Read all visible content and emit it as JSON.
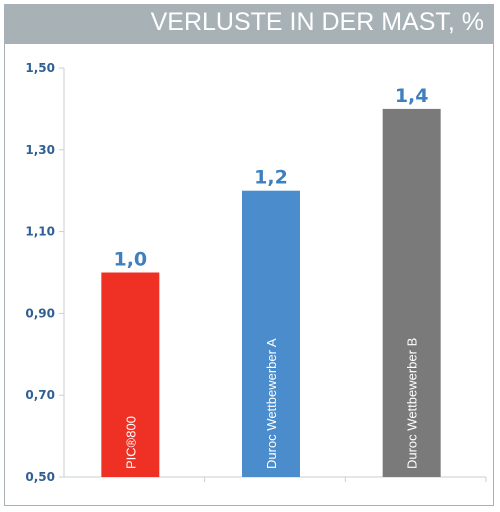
{
  "header": {
    "title": "VERLUSTE IN DER MAST, %"
  },
  "chart_data": {
    "type": "bar",
    "title": "VERLUSTE IN DER MAST, %",
    "xlabel": "",
    "ylabel": "",
    "ylim": [
      0.5,
      1.5
    ],
    "yticks": [
      "1,50",
      "1,30",
      "1,10",
      "0,90",
      "0,70",
      "0,50"
    ],
    "ytick_values": [
      1.5,
      1.3,
      1.1,
      0.9,
      0.7,
      0.5
    ],
    "grid": false,
    "categories": [
      "PIC®800",
      "Duroc Wettbewerber A",
      "Duroc Wettbewerber B"
    ],
    "values": [
      1.0,
      1.2,
      1.4
    ],
    "value_labels": [
      "1,0",
      "1,2",
      "1,4"
    ],
    "colors": [
      "#ee3124",
      "#4a8ccc",
      "#7a7a7a"
    ]
  }
}
